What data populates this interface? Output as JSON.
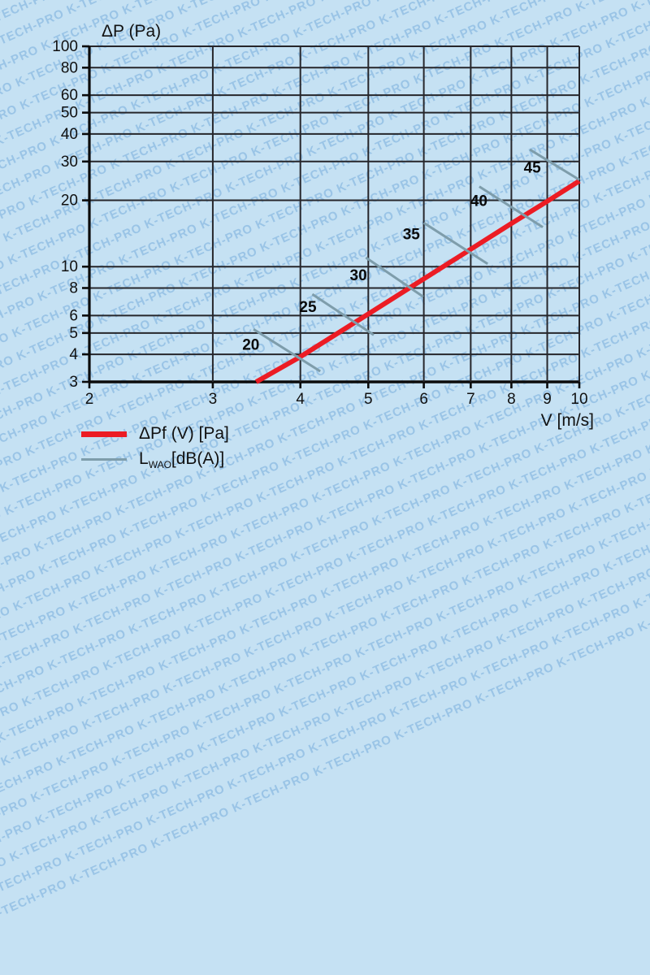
{
  "watermark": {
    "text": "K-TECH-PRO",
    "color": "#78aedd"
  },
  "colors": {
    "background": "#c5e1f3",
    "grid": "#26262b",
    "axis": "#0b0b0b",
    "text": "#111111",
    "pressure_line": "#ec1c24",
    "noise_line": "#7e9dab"
  },
  "chart_data": {
    "type": "line",
    "grid": true,
    "legend_position": "bottom-left",
    "x_axis": {
      "title": "V [m/s]",
      "scale": "log",
      "min": 2,
      "max": 10,
      "ticks": [
        2,
        3,
        4,
        5,
        6,
        7,
        8,
        9,
        10
      ]
    },
    "y_axis": {
      "title": "ΔP (Pa)",
      "scale": "log",
      "min": 3,
      "max": 100,
      "ticks": [
        3,
        4,
        5,
        6,
        8,
        10,
        20,
        30,
        40,
        50,
        60,
        80,
        100
      ]
    },
    "series": [
      {
        "name": "ΔPf (V) [Pa]",
        "color": "#ec1c24",
        "width": 6,
        "points": [
          [
            3.46,
            3.0
          ],
          [
            4.0,
            3.9
          ],
          [
            5.0,
            6.1
          ],
          [
            6.0,
            8.8
          ],
          [
            7.0,
            12.0
          ],
          [
            8.0,
            15.7
          ],
          [
            9.0,
            19.8
          ],
          [
            10.0,
            24.5
          ]
        ]
      }
    ],
    "noise_level_lines": {
      "name": "LWAO [dB(A)]",
      "color": "#7e9dab",
      "width": 3,
      "segments": [
        {
          "label": "20",
          "from": [
            3.43,
            5.2
          ],
          "to": [
            4.27,
            3.35
          ],
          "label_at": [
            3.4,
            4.45
          ]
        },
        {
          "label": "25",
          "from": [
            4.16,
            7.5
          ],
          "to": [
            5.09,
            4.9
          ],
          "label_at": [
            4.1,
            6.6
          ]
        },
        {
          "label": "30",
          "from": [
            4.96,
            11.0
          ],
          "to": [
            5.99,
            7.3
          ],
          "label_at": [
            4.84,
            9.2
          ]
        },
        {
          "label": "35",
          "from": [
            6.0,
            15.8
          ],
          "to": [
            7.4,
            10.3
          ],
          "label_at": [
            5.76,
            14.1
          ]
        },
        {
          "label": "40",
          "from": [
            7.2,
            23.1
          ],
          "to": [
            8.87,
            15.1
          ],
          "label_at": [
            7.19,
            20.0
          ]
        },
        {
          "label": "45",
          "from": [
            8.5,
            34.0
          ],
          "to": [
            10.0,
            24.8
          ],
          "label_at": [
            8.57,
            28.4
          ]
        }
      ]
    }
  },
  "legend": {
    "items": [
      {
        "id": "pressure",
        "label": "ΔPf (V) [Pa]"
      },
      {
        "id": "noise",
        "label_prefix": "L",
        "label_sub": "WAO",
        "label_suffix": "[dB(A)]"
      }
    ]
  }
}
